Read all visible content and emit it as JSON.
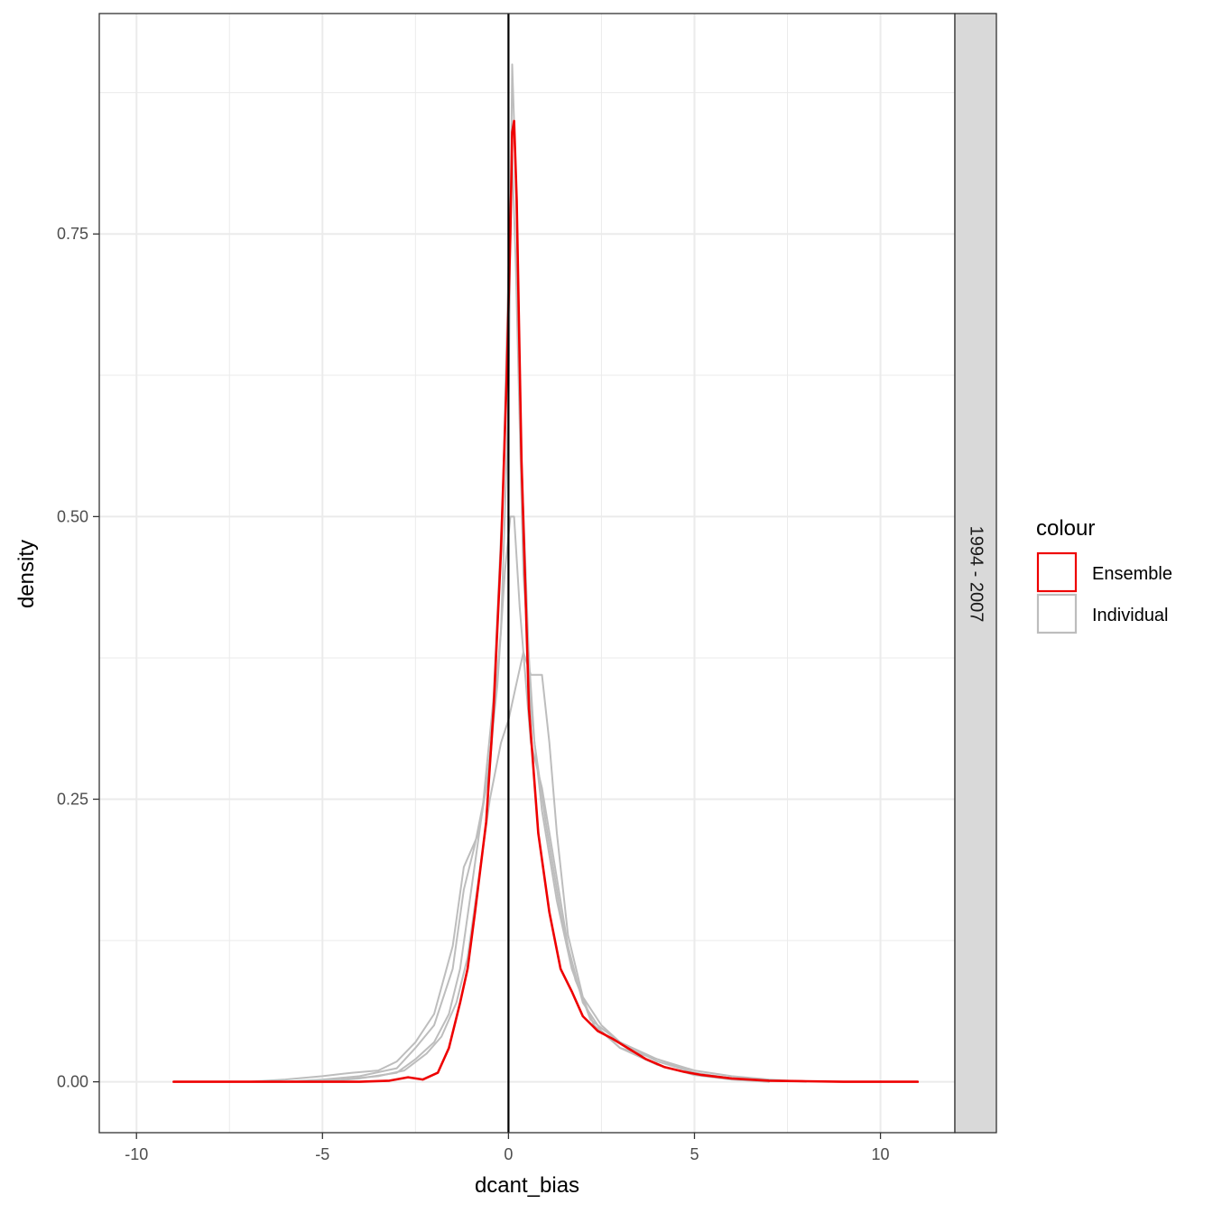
{
  "chart_data": {
    "type": "line",
    "xlabel": "dcant_bias",
    "ylabel": "density",
    "xlim": [
      -11,
      12
    ],
    "ylim": [
      -0.045,
      0.945
    ],
    "x_ticks": [
      -10,
      -5,
      0,
      5,
      10
    ],
    "x_tick_labels": [
      "-10",
      "-5",
      "0",
      "5",
      "10"
    ],
    "y_ticks": [
      0,
      0.25,
      0.5,
      0.75
    ],
    "y_tick_labels": [
      "0.00",
      "0.25",
      "0.50",
      "0.75"
    ],
    "grid": true,
    "facet_label": "1994 - 2007",
    "vline_x": 0,
    "legend": {
      "title": "colour",
      "position": "right",
      "entries": [
        {
          "label": "Ensemble",
          "color": "#ee0000"
        },
        {
          "label": "Individual",
          "color": "#bdbdbd"
        }
      ]
    },
    "series": [
      {
        "name": "Individual",
        "color": "#bdbdbd",
        "points": [
          [
            -7,
            0
          ],
          [
            -6,
            0.002
          ],
          [
            -5,
            0.005
          ],
          [
            -4.2,
            0.008
          ],
          [
            -3.5,
            0.01
          ],
          [
            -3,
            0.018
          ],
          [
            -2.5,
            0.035
          ],
          [
            -2,
            0.06
          ],
          [
            -1.5,
            0.12
          ],
          [
            -1.2,
            0.19
          ],
          [
            -0.8,
            0.22
          ],
          [
            -0.5,
            0.28
          ],
          [
            -0.2,
            0.4
          ],
          [
            0,
            0.6
          ],
          [
            0.1,
            0.9
          ],
          [
            0.2,
            0.8
          ],
          [
            0.35,
            0.55
          ],
          [
            0.6,
            0.33
          ],
          [
            0.9,
            0.24
          ],
          [
            1.3,
            0.16
          ],
          [
            1.7,
            0.1
          ],
          [
            2.2,
            0.055
          ],
          [
            3,
            0.035
          ],
          [
            4,
            0.02
          ],
          [
            5,
            0.01
          ],
          [
            6,
            0.005
          ],
          [
            7,
            0.002
          ],
          [
            8,
            0
          ]
        ]
      },
      {
        "name": "Individual",
        "color": "#bdbdbd",
        "points": [
          [
            -6,
            0
          ],
          [
            -5,
            0.002
          ],
          [
            -4,
            0.005
          ],
          [
            -3,
            0.012
          ],
          [
            -2.5,
            0.03
          ],
          [
            -2,
            0.05
          ],
          [
            -1.5,
            0.1
          ],
          [
            -1.2,
            0.17
          ],
          [
            -0.9,
            0.21
          ],
          [
            -0.6,
            0.26
          ],
          [
            -0.3,
            0.35
          ],
          [
            -0.1,
            0.45
          ],
          [
            0.05,
            0.5
          ],
          [
            0.15,
            0.5
          ],
          [
            0.3,
            0.42
          ],
          [
            0.6,
            0.3
          ],
          [
            0.9,
            0.26
          ],
          [
            1.2,
            0.2
          ],
          [
            1.6,
            0.12
          ],
          [
            2,
            0.07
          ],
          [
            2.5,
            0.045
          ],
          [
            3,
            0.03
          ],
          [
            4,
            0.02
          ],
          [
            5,
            0.008
          ],
          [
            6,
            0.003
          ],
          [
            7,
            0
          ]
        ]
      },
      {
        "name": "Individual",
        "color": "#bdbdbd",
        "points": [
          [
            -6,
            0
          ],
          [
            -4.5,
            0.002
          ],
          [
            -3.5,
            0.005
          ],
          [
            -2.8,
            0.01
          ],
          [
            -2.2,
            0.025
          ],
          [
            -1.8,
            0.04
          ],
          [
            -1.4,
            0.07
          ],
          [
            -1.1,
            0.11
          ],
          [
            -0.8,
            0.18
          ],
          [
            -0.5,
            0.25
          ],
          [
            -0.2,
            0.3
          ],
          [
            0,
            0.32
          ],
          [
            0.2,
            0.35
          ],
          [
            0.4,
            0.38
          ],
          [
            0.6,
            0.36
          ],
          [
            0.9,
            0.36
          ],
          [
            1.1,
            0.3
          ],
          [
            1.3,
            0.22
          ],
          [
            1.6,
            0.13
          ],
          [
            2,
            0.075
          ],
          [
            2.5,
            0.05
          ],
          [
            3,
            0.035
          ],
          [
            4,
            0.018
          ],
          [
            5,
            0.008
          ],
          [
            6,
            0.003
          ],
          [
            7,
            0
          ]
        ]
      },
      {
        "name": "Individual",
        "color": "#bdbdbd",
        "points": [
          [
            -5,
            0
          ],
          [
            -4,
            0.003
          ],
          [
            -3,
            0.008
          ],
          [
            -2.5,
            0.02
          ],
          [
            -2,
            0.035
          ],
          [
            -1.6,
            0.06
          ],
          [
            -1.3,
            0.1
          ],
          [
            -1,
            0.17
          ],
          [
            -0.7,
            0.24
          ],
          [
            -0.4,
            0.34
          ],
          [
            -0.15,
            0.52
          ],
          [
            0,
            0.72
          ],
          [
            0.1,
            0.82
          ],
          [
            0.2,
            0.72
          ],
          [
            0.4,
            0.45
          ],
          [
            0.7,
            0.3
          ],
          [
            1,
            0.23
          ],
          [
            1.4,
            0.15
          ],
          [
            1.8,
            0.09
          ],
          [
            2.3,
            0.05
          ],
          [
            3,
            0.03
          ],
          [
            4,
            0.015
          ],
          [
            5,
            0.006
          ],
          [
            6,
            0.002
          ],
          [
            7,
            0
          ]
        ]
      },
      {
        "name": "Ensemble",
        "color": "#ee0000",
        "points": [
          [
            -9,
            0
          ],
          [
            -7,
            0
          ],
          [
            -5,
            0
          ],
          [
            -4,
            0
          ],
          [
            -3.2,
            0.001
          ],
          [
            -2.7,
            0.004
          ],
          [
            -2.3,
            0.002
          ],
          [
            -1.9,
            0.008
          ],
          [
            -1.6,
            0.03
          ],
          [
            -1.3,
            0.07
          ],
          [
            -1.1,
            0.1
          ],
          [
            -0.9,
            0.15
          ],
          [
            -0.6,
            0.23
          ],
          [
            -0.4,
            0.33
          ],
          [
            -0.2,
            0.47
          ],
          [
            -0.05,
            0.62
          ],
          [
            0.05,
            0.75
          ],
          [
            0.1,
            0.84
          ],
          [
            0.15,
            0.85
          ],
          [
            0.22,
            0.78
          ],
          [
            0.35,
            0.55
          ],
          [
            0.55,
            0.33
          ],
          [
            0.8,
            0.22
          ],
          [
            1.1,
            0.15
          ],
          [
            1.4,
            0.1
          ],
          [
            1.7,
            0.08
          ],
          [
            2,
            0.058
          ],
          [
            2.4,
            0.045
          ],
          [
            2.8,
            0.038
          ],
          [
            3.2,
            0.03
          ],
          [
            3.7,
            0.02
          ],
          [
            4.2,
            0.013
          ],
          [
            4.7,
            0.009
          ],
          [
            5.2,
            0.006
          ],
          [
            6,
            0.003
          ],
          [
            7,
            0.001
          ],
          [
            8,
            0.0005
          ],
          [
            9,
            0
          ],
          [
            11,
            0
          ]
        ]
      }
    ]
  }
}
